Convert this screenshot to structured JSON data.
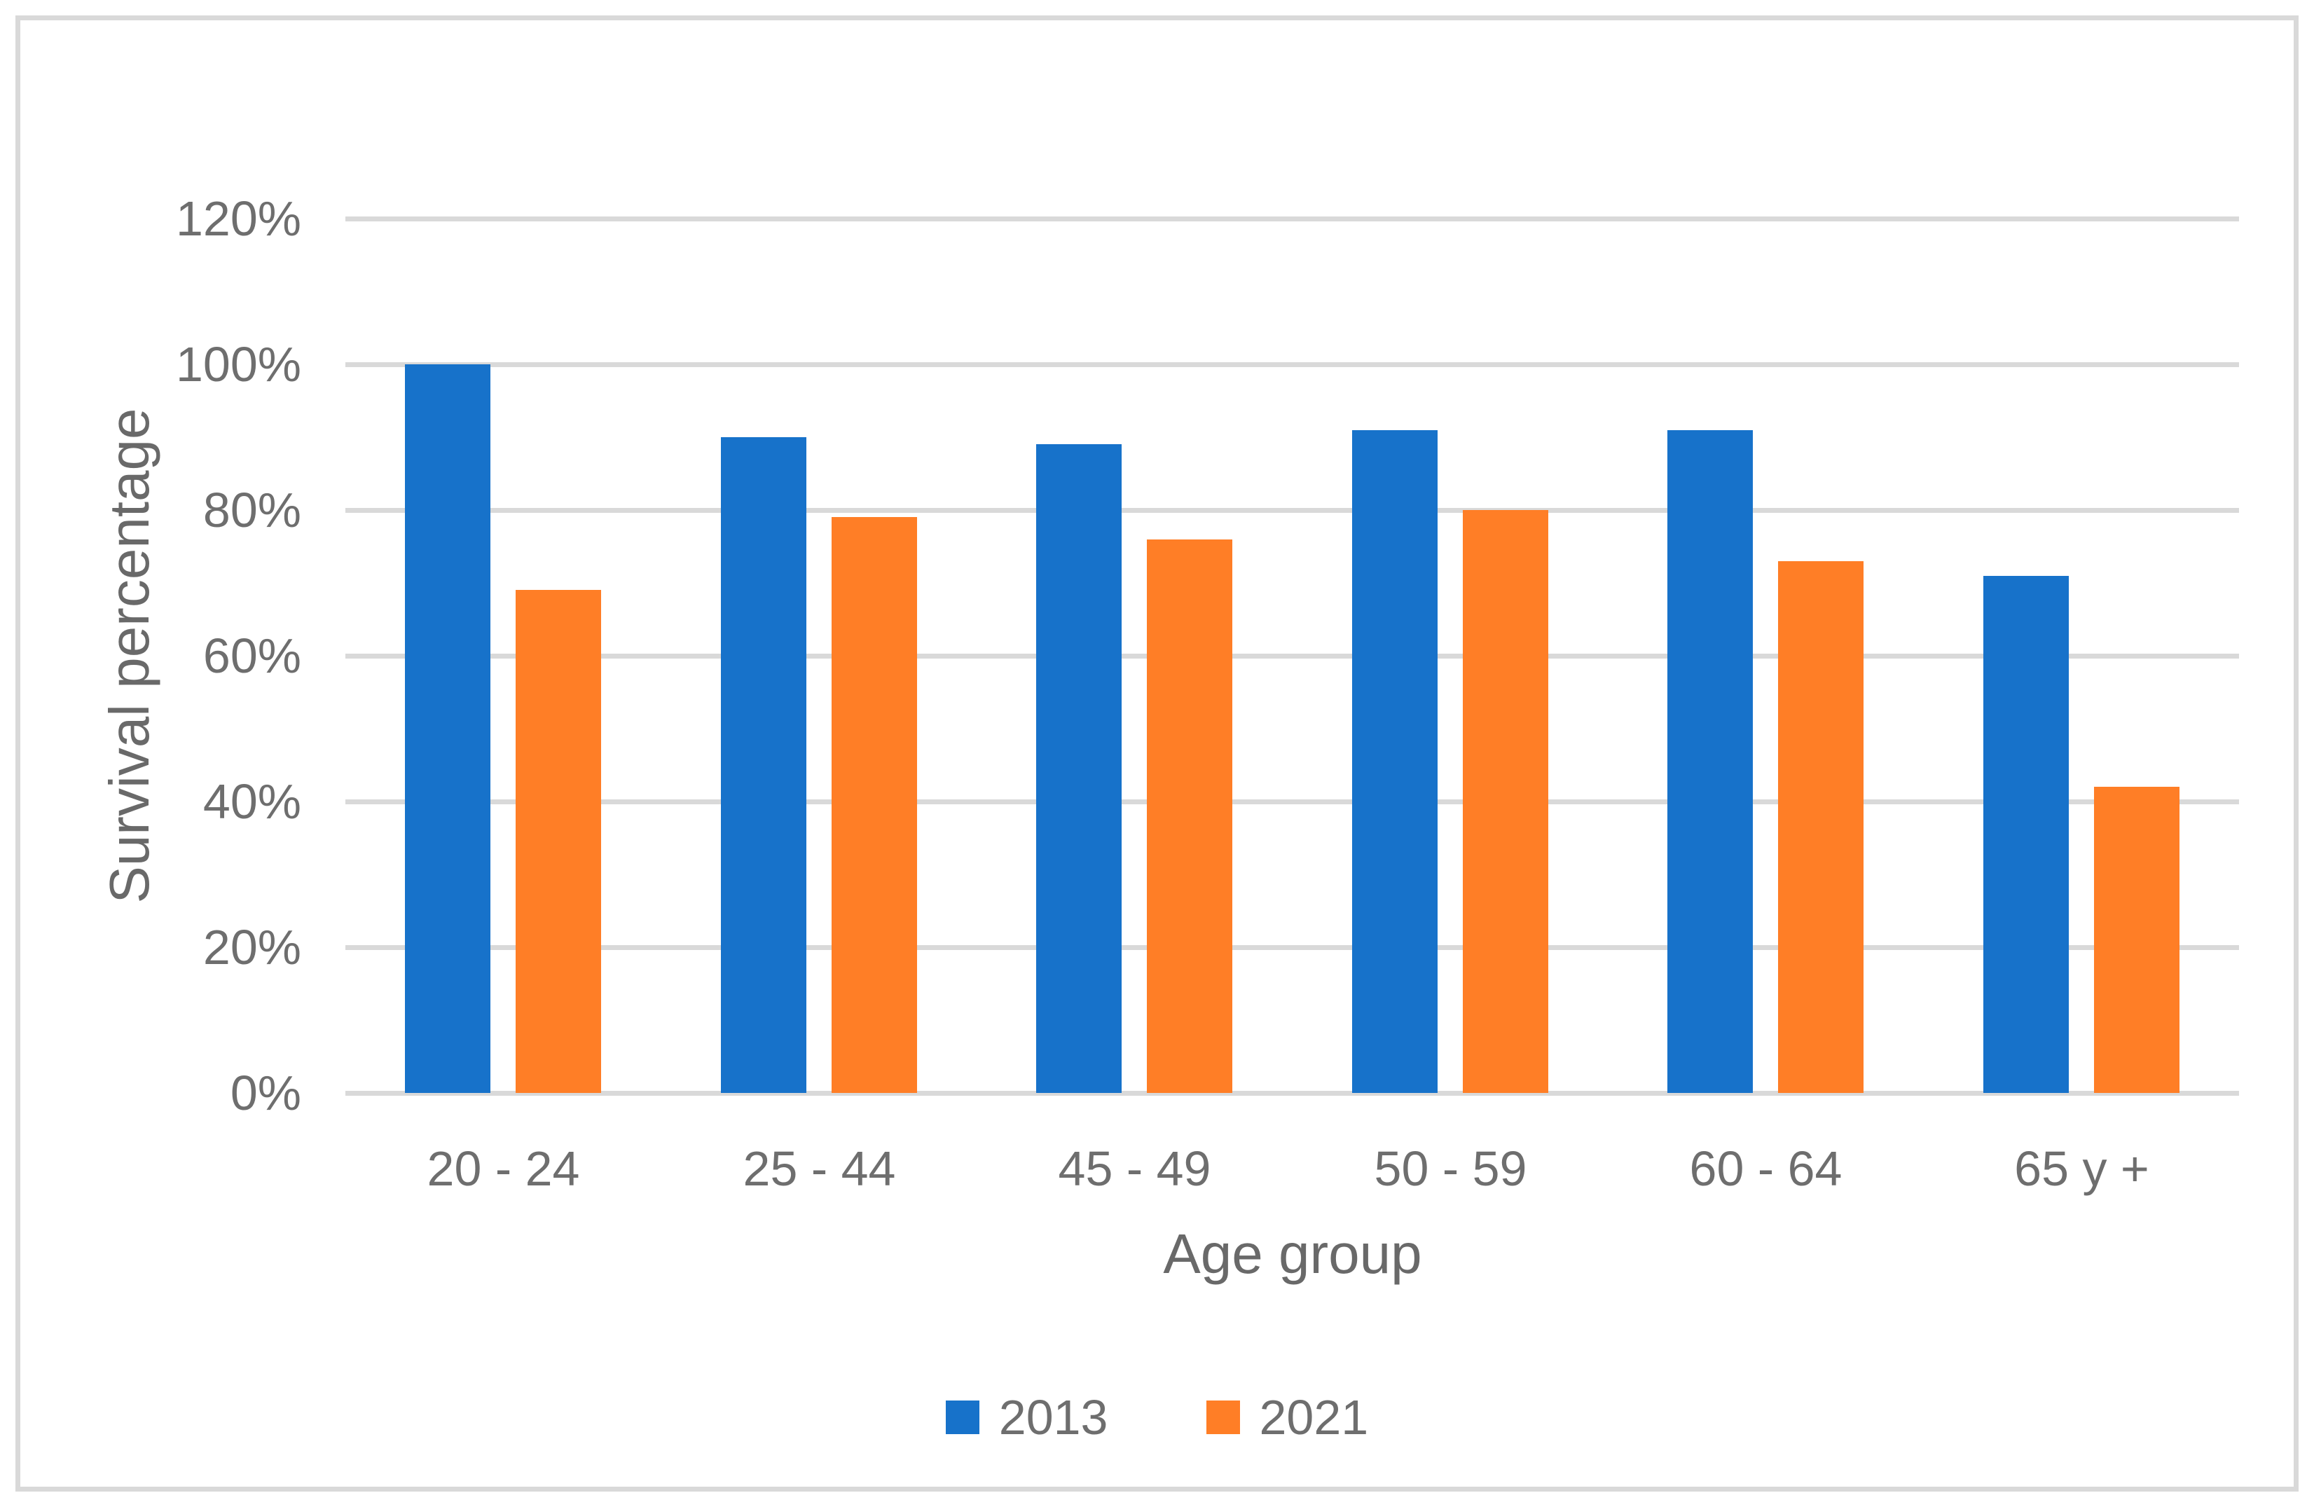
{
  "chart_data": {
    "type": "bar",
    "title": "",
    "categories": [
      "20 - 24",
      "25 - 44",
      "45 - 49",
      "50 - 59",
      "60 - 64",
      "65 y +"
    ],
    "series": [
      {
        "name": "2013",
        "color": "#1772CA",
        "values": [
          100,
          90,
          89,
          91,
          91,
          71
        ]
      },
      {
        "name": "2021",
        "color": "#FF7E26",
        "values": [
          69,
          79,
          76,
          80,
          73,
          42
        ]
      }
    ],
    "xlabel": "Age group",
    "ylabel": "Survival percentage",
    "ylim": [
      0,
      120
    ],
    "y_tick_step": 20,
    "y_tick_labels": [
      "0%",
      "20%",
      "40%",
      "60%",
      "80%",
      "100%",
      "120%"
    ],
    "value_unit": "percent",
    "grid": true,
    "legend_position": "bottom",
    "legend_items": [
      {
        "label": "2013",
        "color": "#1772CA"
      },
      {
        "label": "2021",
        "color": "#FF7E26"
      }
    ]
  },
  "colors": {
    "background": "#FFFFFF",
    "gridline": "#D9D9D9",
    "figure_border": "#D9D9D9",
    "tick_text": "#6E6E6E",
    "title_text": "#696969"
  }
}
